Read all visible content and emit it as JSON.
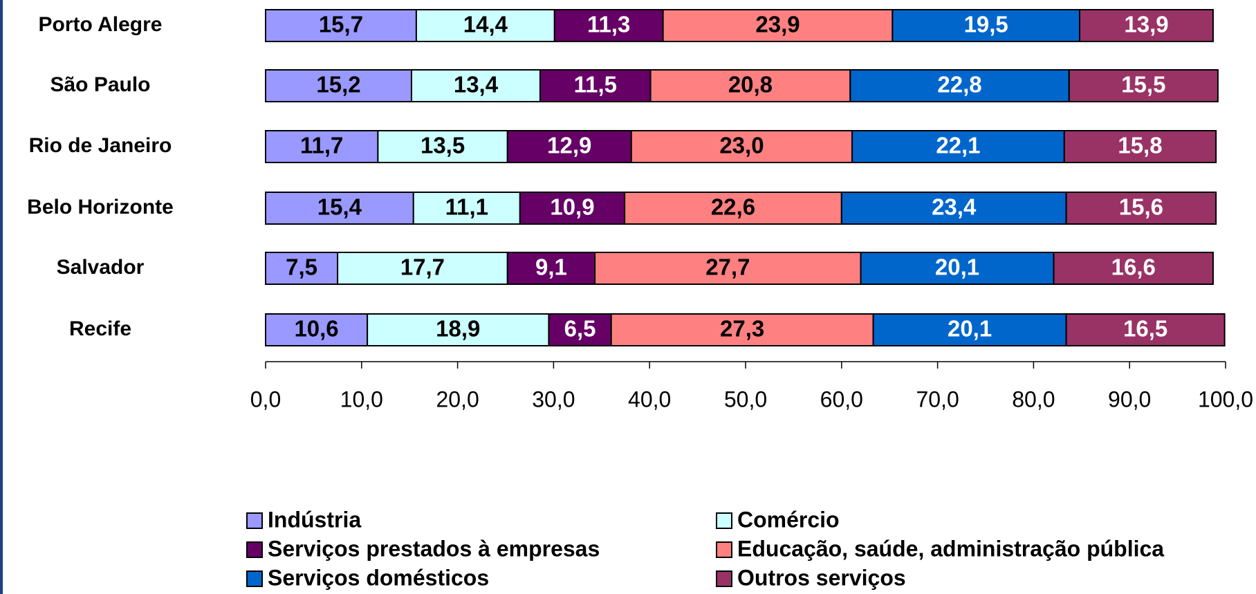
{
  "chart_data": {
    "type": "stacked-barh",
    "categories": [
      "Porto Alegre",
      "São Paulo",
      "Rio de Janeiro",
      "Belo Horizonte",
      "Salvador",
      "Recife"
    ],
    "series": [
      {
        "name": "Indústria",
        "color": "#9999ff",
        "values": [
          15.7,
          15.2,
          11.7,
          15.4,
          7.5,
          10.6
        ],
        "value_labels": [
          "15,7",
          "15,2",
          "11,7",
          "15,4",
          "7,5",
          "10,6"
        ]
      },
      {
        "name": "Comércio",
        "color": "#ccffff",
        "values": [
          14.4,
          13.4,
          13.5,
          11.1,
          17.7,
          18.9
        ],
        "value_labels": [
          "14,4",
          "13,4",
          "13,5",
          "11,1",
          "17,7",
          "18,9"
        ]
      },
      {
        "name": "Serviços prestados à empresas",
        "color": "#660066",
        "values": [
          11.3,
          11.5,
          12.9,
          10.9,
          9.1,
          6.5
        ],
        "value_labels": [
          "11,3",
          "11,5",
          "12,9",
          "10,9",
          "9,1",
          "6,5"
        ]
      },
      {
        "name": "Educação, saúde, administração pública",
        "color": "#ff8080",
        "values": [
          23.9,
          20.8,
          23.0,
          22.6,
          27.7,
          27.3
        ],
        "value_labels": [
          "23,9",
          "20,8",
          "23,0",
          "22,6",
          "27,7",
          "27,3"
        ]
      },
      {
        "name": "Serviços domésticos",
        "color": "#0066cc",
        "values": [
          19.5,
          22.8,
          22.1,
          23.4,
          20.1,
          20.1
        ],
        "value_labels": [
          "19,5",
          "22,8",
          "22,1",
          "23,4",
          "20,1",
          "20,1"
        ]
      },
      {
        "name": "Outros serviços",
        "color": "#993366",
        "values": [
          13.9,
          15.5,
          15.8,
          15.6,
          16.6,
          16.5
        ],
        "value_labels": [
          "13,9",
          "15,5",
          "15,8",
          "15,6",
          "16,6",
          "16,5"
        ]
      }
    ],
    "xlim": [
      0,
      100
    ],
    "xticks": [
      {
        "value": 0,
        "label": "0,0"
      },
      {
        "value": 10,
        "label": "10,0"
      },
      {
        "value": 20,
        "label": "20,0"
      },
      {
        "value": 30,
        "label": "30,0"
      },
      {
        "value": 40,
        "label": "40,0"
      },
      {
        "value": 50,
        "label": "50,0"
      },
      {
        "value": 60,
        "label": "60,0"
      },
      {
        "value": 70,
        "label": "70,0"
      },
      {
        "value": 80,
        "label": "80,0"
      },
      {
        "value": 90,
        "label": "90,0"
      },
      {
        "value": 100,
        "label": "100,0"
      }
    ],
    "legend": "bottom"
  }
}
